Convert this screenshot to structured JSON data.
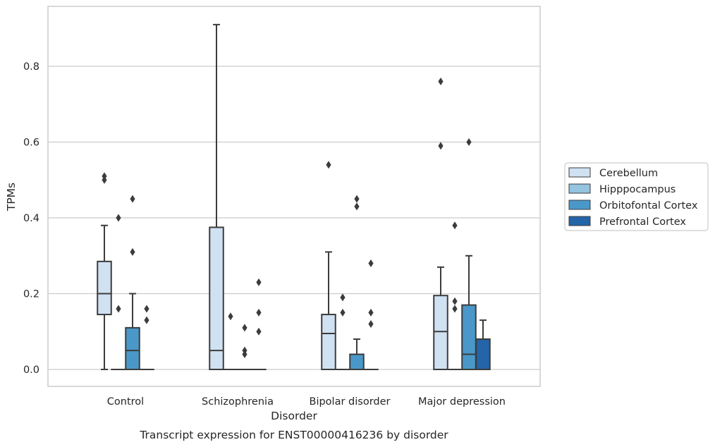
{
  "chart_data": {
    "type": "box",
    "caption": "Transcript expression for ENST00000416236 by disorder",
    "xlabel": "Disorder",
    "ylabel": "TPMs",
    "ylim": [
      -0.045,
      0.955
    ],
    "yticks": [
      0.0,
      0.2,
      0.4,
      0.6,
      0.8
    ],
    "ytick_labels": [
      "0.0",
      "0.2",
      "0.4",
      "0.6",
      "0.8"
    ],
    "grid": "horizontal",
    "legend_position": "right",
    "categories": [
      "Control",
      "Schizophrenia",
      "Bipolar disorder",
      "Major depression"
    ],
    "series": [
      {
        "name": "Cerebellum",
        "color": "#d0e1f2",
        "boxes": [
          {
            "whisker_low": 0.0,
            "q1": 0.145,
            "median": 0.2,
            "q3": 0.285,
            "whisker_high": 0.38,
            "outliers": [
              0.5,
              0.51
            ]
          },
          {
            "whisker_low": 0.0,
            "q1": 0.0,
            "median": 0.05,
            "q3": 0.375,
            "whisker_high": 0.91,
            "outliers": []
          },
          {
            "whisker_low": 0.0,
            "q1": 0.0,
            "median": 0.095,
            "q3": 0.145,
            "whisker_high": 0.31,
            "outliers": [
              0.54
            ]
          },
          {
            "whisker_low": 0.0,
            "q1": 0.0,
            "median": 0.1,
            "q3": 0.195,
            "whisker_high": 0.27,
            "outliers": [
              0.59,
              0.76
            ]
          }
        ]
      },
      {
        "name": "Hipppocampus",
        "color": "#94c4df",
        "boxes": [
          {
            "whisker_low": 0.0,
            "q1": 0.0,
            "median": 0.0,
            "q3": 0.0,
            "whisker_high": 0.0,
            "outliers": [
              0.16,
              0.4
            ]
          },
          {
            "whisker_low": 0.0,
            "q1": 0.0,
            "median": 0.0,
            "q3": 0.0,
            "whisker_high": 0.0,
            "outliers": [
              0.14
            ]
          },
          {
            "whisker_low": 0.0,
            "q1": 0.0,
            "median": 0.0,
            "q3": 0.0,
            "whisker_high": 0.0,
            "outliers": [
              0.15,
              0.19
            ]
          },
          {
            "whisker_low": 0.0,
            "q1": 0.0,
            "median": 0.0,
            "q3": 0.0,
            "whisker_high": 0.0,
            "outliers": [
              0.16,
              0.18,
              0.38
            ]
          }
        ]
      },
      {
        "name": "Orbitofontal Cortex",
        "color": "#4a98c9",
        "boxes": [
          {
            "whisker_low": 0.0,
            "q1": 0.0,
            "median": 0.05,
            "q3": 0.11,
            "whisker_high": 0.2,
            "outliers": [
              0.31,
              0.45
            ]
          },
          {
            "whisker_low": 0.0,
            "q1": 0.0,
            "median": 0.0,
            "q3": 0.0,
            "whisker_high": 0.0,
            "outliers": [
              0.04,
              0.05,
              0.11
            ]
          },
          {
            "whisker_low": 0.0,
            "q1": 0.0,
            "median": 0.0,
            "q3": 0.04,
            "whisker_high": 0.08,
            "outliers": [
              0.43,
              0.45
            ]
          },
          {
            "whisker_low": 0.0,
            "q1": 0.0,
            "median": 0.04,
            "q3": 0.17,
            "whisker_high": 0.3,
            "outliers": [
              0.6
            ]
          }
        ]
      },
      {
        "name": "Prefrontal Cortex",
        "color": "#2464a8",
        "boxes": [
          {
            "whisker_low": 0.0,
            "q1": 0.0,
            "median": 0.0,
            "q3": 0.0,
            "whisker_high": 0.0,
            "outliers": [
              0.13,
              0.16
            ]
          },
          {
            "whisker_low": 0.0,
            "q1": 0.0,
            "median": 0.0,
            "q3": 0.0,
            "whisker_high": 0.0,
            "outliers": [
              0.1,
              0.15,
              0.23
            ]
          },
          {
            "whisker_low": 0.0,
            "q1": 0.0,
            "median": 0.0,
            "q3": 0.0,
            "whisker_high": 0.0,
            "outliers": [
              0.12,
              0.15,
              0.28
            ]
          },
          {
            "whisker_low": 0.0,
            "q1": 0.0,
            "median": 0.0,
            "q3": 0.08,
            "whisker_high": 0.13,
            "outliers": []
          }
        ]
      }
    ]
  }
}
